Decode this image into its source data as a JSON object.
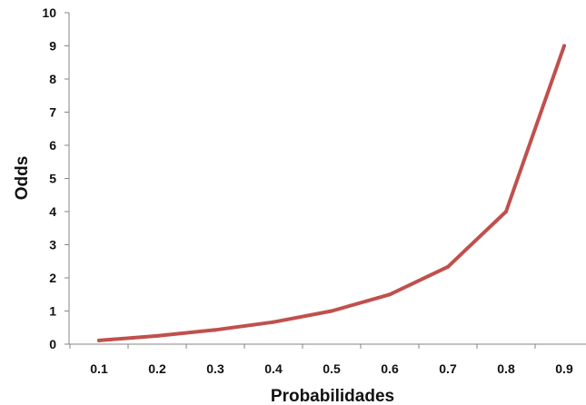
{
  "chart_data": {
    "type": "line",
    "title": "",
    "xlabel": "Probabilidades",
    "ylabel": "Odds",
    "x": [
      "0.1",
      "0.2",
      "0.3",
      "0.4",
      "0.5",
      "0.6",
      "0.7",
      "0.8",
      "0.9"
    ],
    "series": [
      {
        "values": [
          0.111,
          0.25,
          0.429,
          0.667,
          1.0,
          1.5,
          2.333,
          4.0,
          9.0
        ]
      }
    ],
    "ylim": [
      0,
      10
    ],
    "yticks": [
      "0",
      "1",
      "2",
      "3",
      "4",
      "5",
      "6",
      "7",
      "8",
      "9",
      "10"
    ],
    "grid": false,
    "legend": "none",
    "colors": {
      "line": "#c0504d",
      "axis": "#868686",
      "text": "#111111"
    }
  }
}
